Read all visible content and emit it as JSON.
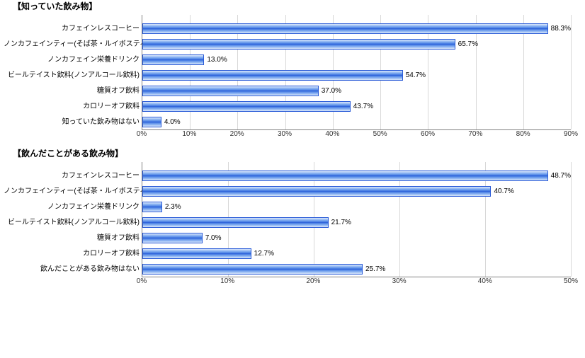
{
  "charts": [
    {
      "title": "【知っていた飲み物】",
      "xmax": 90,
      "xtick_step": 10,
      "bar_color_top": "#dce8fb",
      "bar_color_mid": "#2a5bd7",
      "bar_border": "#2a5bd7",
      "grid_color": "#d8d8d8",
      "axis_color": "#808080",
      "label_fontsize": 10,
      "items": [
        {
          "label": "カフェインレスコーヒー",
          "value": 88.3,
          "display": "88.3%"
        },
        {
          "label": "ノンカフェインティー(そば茶・ルイボスティーなど)",
          "value": 65.7,
          "display": "65.7%"
        },
        {
          "label": "ノンカフェイン栄養ドリンク",
          "value": 13.0,
          "display": "13.0%"
        },
        {
          "label": "ビールテイスト飲料(ノンアルコール飲料)",
          "value": 54.7,
          "display": "54.7%"
        },
        {
          "label": "糖質オフ飲料",
          "value": 37.0,
          "display": "37.0%"
        },
        {
          "label": "カロリーオフ飲料",
          "value": 43.7,
          "display": "43.7%"
        },
        {
          "label": "知っていた飲み物はない",
          "value": 4.0,
          "display": "4.0%"
        }
      ]
    },
    {
      "title": "【飲んだことがある飲み物】",
      "xmax": 50,
      "xtick_step": 10,
      "bar_color_top": "#dce8fb",
      "bar_color_mid": "#2a5bd7",
      "bar_border": "#2a5bd7",
      "grid_color": "#d8d8d8",
      "axis_color": "#808080",
      "label_fontsize": 10,
      "items": [
        {
          "label": "カフェインレスコーヒー",
          "value": 48.7,
          "display": "48.7%"
        },
        {
          "label": "ノンカフェインティー(そば茶・ルイボスティーなど)",
          "value": 40.7,
          "display": "40.7%"
        },
        {
          "label": "ノンカフェイン栄養ドリンク",
          "value": 2.3,
          "display": "2.3%"
        },
        {
          "label": "ビールテイスト飲料(ノンアルコール飲料)",
          "value": 21.7,
          "display": "21.7%"
        },
        {
          "label": "糖質オフ飲料",
          "value": 7.0,
          "display": "7.0%"
        },
        {
          "label": "カロリーオフ飲料",
          "value": 12.7,
          "display": "12.7%"
        },
        {
          "label": "飲んだことがある飲み物はない",
          "value": 25.7,
          "display": "25.7%"
        }
      ]
    }
  ],
  "background": "#ffffff"
}
